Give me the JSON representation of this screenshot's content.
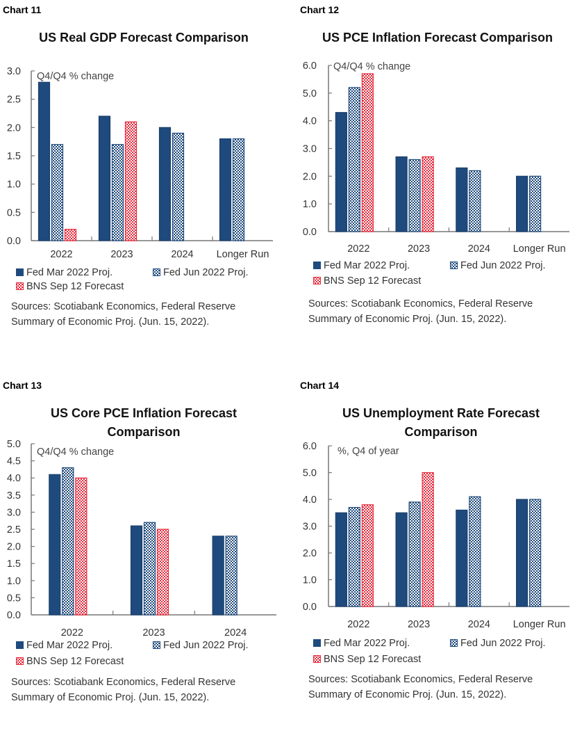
{
  "series_styles": {
    "fed_mar": {
      "label": "Fed Mar 2022 Proj.",
      "fill": "#1f4a7d",
      "pattern": "solid"
    },
    "fed_jun": {
      "label": "Fed Jun 2022 Proj.",
      "fill": "#1f4a7d",
      "pattern": "checker-blue"
    },
    "bns": {
      "label": "BNS Sep 12 Forecast",
      "fill": "#e8283a",
      "pattern": "checker-red"
    }
  },
  "chart_data": [
    {
      "id": "chart11",
      "number_label": "Chart 11",
      "type": "bar",
      "title": "US Real GDP Forecast Comparison",
      "unit_label": "Q4/Q4 % change",
      "categories": [
        "2022",
        "2023",
        "2024",
        "Longer Run"
      ],
      "yticks": [
        "0.0",
        "0.5",
        "1.0",
        "1.5",
        "2.0",
        "2.5",
        "3.0"
      ],
      "ylim": [
        0,
        3
      ],
      "series": [
        {
          "name": "Fed Mar 2022 Proj.",
          "key": "fed_mar",
          "values": [
            2.8,
            2.2,
            2.0,
            1.8
          ]
        },
        {
          "name": "Fed Jun 2022 Proj.",
          "key": "fed_jun",
          "values": [
            1.7,
            1.7,
            1.9,
            1.8
          ]
        },
        {
          "name": "BNS Sep 12 Forecast",
          "key": "bns",
          "values": [
            0.2,
            2.1,
            null,
            null
          ]
        }
      ],
      "legend": [
        "Fed Mar 2022 Proj.",
        "Fed Jun 2022 Proj.",
        "BNS Sep 12 Forecast"
      ],
      "source_lines": [
        "Sources: Scotiabank Economics, Federal Reserve",
        "Summary of Economic Proj. (Jun. 15, 2022)."
      ]
    },
    {
      "id": "chart12",
      "number_label": "Chart 12",
      "type": "bar",
      "title": "US PCE Inflation Forecast Comparison",
      "unit_label": "Q4/Q4 % change",
      "categories": [
        "2022",
        "2023",
        "2024",
        "Longer Run"
      ],
      "yticks": [
        "0.0",
        "1.0",
        "2.0",
        "3.0",
        "4.0",
        "5.0",
        "6.0"
      ],
      "ylim": [
        0,
        6
      ],
      "series": [
        {
          "name": "Fed Mar 2022 Proj.",
          "key": "fed_mar",
          "values": [
            4.3,
            2.7,
            2.3,
            2.0
          ]
        },
        {
          "name": "Fed Jun 2022 Proj.",
          "key": "fed_jun",
          "values": [
            5.2,
            2.6,
            2.2,
            2.0
          ]
        },
        {
          "name": "BNS Sep 12 Forecast",
          "key": "bns",
          "values": [
            5.7,
            2.7,
            null,
            null
          ]
        }
      ],
      "legend": [
        "Fed Mar 2022 Proj.",
        "Fed Jun 2022 Proj.",
        "BNS Sep 12 Forecast"
      ],
      "source_lines": [
        "Sources: Scotiabank Economics, Federal Reserve",
        "Summary of Economic Proj. (Jun. 15, 2022)."
      ]
    },
    {
      "id": "chart13",
      "number_label": "Chart 13",
      "type": "bar",
      "title": "US Core PCE Inflation  Forecast Comparison",
      "title_lines": [
        "US Core PCE Inflation  Forecast",
        "Comparison"
      ],
      "unit_label": "Q4/Q4 % change",
      "categories": [
        "2022",
        "2023",
        "2024"
      ],
      "yticks": [
        "0.0",
        "0.5",
        "1.0",
        "1.5",
        "2.0",
        "2.5",
        "3.0",
        "3.5",
        "4.0",
        "4.5",
        "5.0"
      ],
      "ylim": [
        0,
        5
      ],
      "series": [
        {
          "name": "Fed Mar 2022 Proj.",
          "key": "fed_mar",
          "values": [
            4.1,
            2.6,
            2.3
          ]
        },
        {
          "name": "Fed Jun 2022 Proj.",
          "key": "fed_jun",
          "values": [
            4.3,
            2.7,
            2.3
          ]
        },
        {
          "name": "BNS Sep 12 Forecast",
          "key": "bns",
          "values": [
            4.0,
            2.5,
            null
          ]
        }
      ],
      "legend": [
        "Fed Mar 2022 Proj.",
        "Fed Jun 2022 Proj.",
        "BNS Sep 12 Forecast"
      ],
      "source_lines": [
        "Sources: Scotiabank Economics, Federal Reserve",
        "Summary of Economic Proj. (Jun. 15, 2022)."
      ]
    },
    {
      "id": "chart14",
      "number_label": "Chart 14",
      "type": "bar",
      "title": "US Unemployment Rate Forecast Comparison",
      "title_lines": [
        "US Unemployment Rate Forecast",
        "Comparison"
      ],
      "unit_label": "%, Q4 of year",
      "categories": [
        "2022",
        "2023",
        "2024",
        "Longer Run"
      ],
      "yticks": [
        "0.0",
        "1.0",
        "2.0",
        "3.0",
        "4.0",
        "5.0",
        "6.0"
      ],
      "ylim": [
        0,
        6
      ],
      "series": [
        {
          "name": "Fed Mar 2022 Proj.",
          "key": "fed_mar",
          "values": [
            3.5,
            3.5,
            3.6,
            4.0
          ]
        },
        {
          "name": "Fed Jun 2022 Proj.",
          "key": "fed_jun",
          "values": [
            3.7,
            3.9,
            4.1,
            4.0
          ]
        },
        {
          "name": "BNS Sep 12 Forecast",
          "key": "bns",
          "values": [
            3.8,
            5.0,
            null,
            null
          ]
        }
      ],
      "legend": [
        "Fed Mar 2022 Proj.",
        "Fed Jun 2022 Proj.",
        "BNS Sep 12 Forecast"
      ],
      "source_lines": [
        "Sources: Scotiabank Economics, Federal Reserve",
        "Summary of Economic Proj. (Jun. 15, 2022)."
      ]
    }
  ]
}
